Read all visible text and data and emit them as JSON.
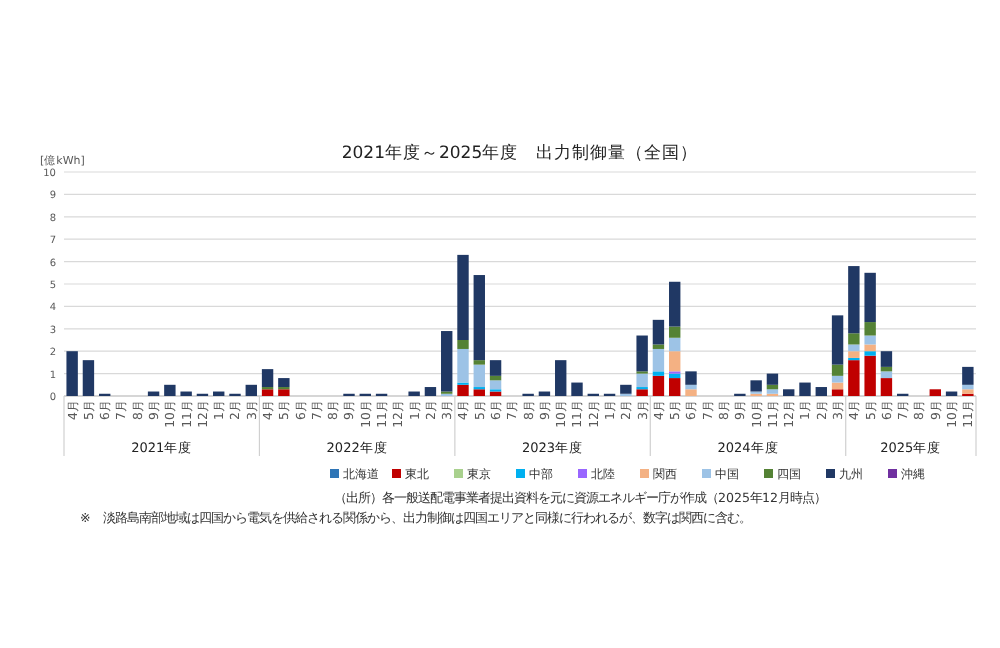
{
  "chart_data": {
    "type": "bar",
    "stacked": true,
    "title": "2021年度～2025年度　出力制御量（全国）",
    "ylabel": "[億kWh]",
    "categories": [
      "4月",
      "5月",
      "6月",
      "7月",
      "8月",
      "9月",
      "10月",
      "11月",
      "12月",
      "1月",
      "2月",
      "3月",
      "4月",
      "5月",
      "6月",
      "7月",
      "8月",
      "9月",
      "10月",
      "11月",
      "12月",
      "1月",
      "2月",
      "3月",
      "4月",
      "5月",
      "6月",
      "7月",
      "8月",
      "9月",
      "10月",
      "11月",
      "12月",
      "1月",
      "2月",
      "3月",
      "4月",
      "5月",
      "6月",
      "7月",
      "8月",
      "9月",
      "10月",
      "11月",
      "12月",
      "1月",
      "2月",
      "3月",
      "4月",
      "5月",
      "6月",
      "7月",
      "8月",
      "9月",
      "10月",
      "11月"
    ],
    "series": [
      {
        "name": "北海道",
        "color": "#2e75b6",
        "values": [
          0,
          0,
          0,
          0,
          0,
          0,
          0,
          0,
          0,
          0,
          0,
          0,
          0,
          0,
          0,
          0,
          0,
          0,
          0,
          0,
          0,
          0,
          0,
          0,
          0,
          0,
          0,
          0,
          0,
          0,
          0,
          0,
          0,
          0,
          0,
          0,
          0,
          0,
          0,
          0,
          0,
          0,
          0,
          0,
          0,
          0,
          0,
          0,
          0,
          0,
          0,
          0,
          0,
          0,
          0,
          0
        ]
      },
      {
        "name": "東北",
        "color": "#c00000",
        "values": [
          0,
          0,
          0,
          0,
          0,
          0,
          0,
          0,
          0,
          0,
          0,
          0,
          0.3,
          0.3,
          0,
          0,
          0,
          0,
          0,
          0,
          0,
          0,
          0,
          0,
          0.5,
          0.3,
          0.2,
          0,
          0,
          0,
          0,
          0,
          0,
          0,
          0,
          0.3,
          0.9,
          0.8,
          0,
          0,
          0,
          0,
          0,
          0,
          0,
          0,
          0,
          0.3,
          1.6,
          1.8,
          0.8,
          0,
          0,
          0.3,
          0,
          0.1
        ]
      },
      {
        "name": "東京",
        "color": "#a9d18e",
        "values": [
          0,
          0,
          0,
          0,
          0,
          0,
          0,
          0,
          0,
          0,
          0,
          0,
          0,
          0,
          0,
          0,
          0,
          0,
          0,
          0,
          0,
          0,
          0,
          0,
          0,
          0,
          0,
          0,
          0,
          0,
          0,
          0,
          0,
          0,
          0,
          0,
          0,
          0,
          0,
          0,
          0,
          0,
          0,
          0,
          0,
          0,
          0,
          0,
          0,
          0,
          0,
          0,
          0,
          0,
          0,
          0
        ]
      },
      {
        "name": "中部",
        "color": "#00b0f0",
        "values": [
          0,
          0,
          0,
          0,
          0,
          0,
          0,
          0,
          0,
          0,
          0,
          0,
          0,
          0,
          0,
          0,
          0,
          0,
          0,
          0,
          0,
          0,
          0,
          0,
          0.1,
          0.1,
          0.1,
          0,
          0,
          0,
          0,
          0,
          0,
          0,
          0,
          0.1,
          0.2,
          0.2,
          0,
          0,
          0,
          0,
          0,
          0,
          0,
          0,
          0,
          0,
          0.1,
          0.2,
          0,
          0,
          0,
          0,
          0,
          0
        ]
      },
      {
        "name": "北陸",
        "color": "#9966ff",
        "values": [
          0,
          0,
          0,
          0,
          0,
          0,
          0,
          0,
          0,
          0,
          0,
          0,
          0,
          0,
          0,
          0,
          0,
          0,
          0,
          0,
          0,
          0,
          0,
          0,
          0,
          0,
          0,
          0,
          0,
          0,
          0,
          0,
          0,
          0,
          0,
          0,
          0,
          0.1,
          0,
          0,
          0,
          0,
          0,
          0,
          0,
          0,
          0,
          0,
          0,
          0,
          0,
          0,
          0,
          0,
          0,
          0
        ]
      },
      {
        "name": "関西",
        "color": "#f4b183",
        "values": [
          0,
          0,
          0,
          0,
          0,
          0,
          0,
          0,
          0,
          0,
          0,
          0,
          0,
          0,
          0,
          0,
          0,
          0,
          0,
          0,
          0,
          0,
          0,
          0,
          0,
          0,
          0,
          0,
          0,
          0,
          0,
          0,
          0,
          0,
          0,
          0,
          0,
          0.9,
          0.3,
          0,
          0,
          0,
          0.1,
          0.1,
          0,
          0,
          0,
          0.3,
          0.3,
          0.3,
          0,
          0,
          0,
          0,
          0,
          0.2
        ]
      },
      {
        "name": "中国",
        "color": "#9dc3e6",
        "values": [
          0,
          0,
          0,
          0,
          0,
          0,
          0,
          0,
          0,
          0,
          0,
          0,
          0,
          0,
          0,
          0,
          0,
          0,
          0,
          0,
          0,
          0,
          0,
          0.1,
          1.5,
          1.0,
          0.4,
          0,
          0,
          0,
          0,
          0,
          0,
          0,
          0.1,
          0.6,
          1.0,
          0.6,
          0.2,
          0,
          0,
          0,
          0.1,
          0.2,
          0,
          0,
          0,
          0.3,
          0.3,
          0.4,
          0.3,
          0,
          0,
          0,
          0,
          0.2
        ]
      },
      {
        "name": "四国",
        "color": "#548235",
        "values": [
          0,
          0,
          0,
          0,
          0,
          0,
          0,
          0,
          0,
          0,
          0,
          0,
          0.1,
          0.1,
          0,
          0,
          0,
          0,
          0,
          0,
          0,
          0,
          0,
          0.1,
          0.4,
          0.2,
          0.2,
          0,
          0,
          0,
          0,
          0,
          0,
          0,
          0,
          0.1,
          0.2,
          0.5,
          0,
          0,
          0,
          0,
          0,
          0.2,
          0,
          0,
          0,
          0.5,
          0.5,
          0.6,
          0.2,
          0,
          0,
          0,
          0,
          0
        ]
      },
      {
        "name": "九州",
        "color": "#203864",
        "values": [
          2.0,
          1.6,
          0.1,
          0,
          0,
          0.2,
          0.5,
          0.2,
          0.1,
          0.2,
          0.1,
          0.5,
          0.8,
          0.4,
          0,
          0,
          0,
          0.1,
          0.1,
          0.1,
          0,
          0.2,
          0.4,
          2.7,
          3.8,
          3.8,
          0.7,
          0,
          0.1,
          0.2,
          1.6,
          0.6,
          0.1,
          0.1,
          0.4,
          1.6,
          1.1,
          2.0,
          0.6,
          0,
          0,
          0.1,
          0.5,
          0.5,
          0.3,
          0.6,
          0.4,
          2.2,
          3.0,
          2.2,
          0.7,
          0.1,
          0,
          0,
          0.2,
          0.8
        ]
      },
      {
        "name": "沖縄",
        "color": "#7030a0",
        "values": [
          0,
          0,
          0,
          0,
          0,
          0,
          0,
          0,
          0,
          0,
          0,
          0,
          0,
          0,
          0,
          0,
          0,
          0,
          0,
          0,
          0,
          0,
          0,
          0,
          0,
          0,
          0,
          0,
          0,
          0,
          0,
          0,
          0,
          0,
          0,
          0,
          0,
          0,
          0,
          0,
          0,
          0,
          0,
          0,
          0,
          0,
          0,
          0,
          0,
          0,
          0,
          0,
          0,
          0,
          0,
          0
        ]
      }
    ],
    "ylim": [
      0,
      10
    ],
    "yticks": [
      0,
      1,
      2,
      3,
      4,
      5,
      6,
      7,
      8,
      9,
      10
    ],
    "grid": "y",
    "legend": "bottom",
    "annotations": [
      "2021年度",
      "2022年度",
      "2023年度",
      "2024年度",
      "2025年度",
      "（出所）各一般送配電事業者提出資料を元に資源エネルギー庁が作成（2025年12月時点）",
      "※　淡路島南部地域は四国から電気を供給される関係から、出力制御は四国エリアと同様に行われるが、数字は関西に含む。"
    ]
  }
}
